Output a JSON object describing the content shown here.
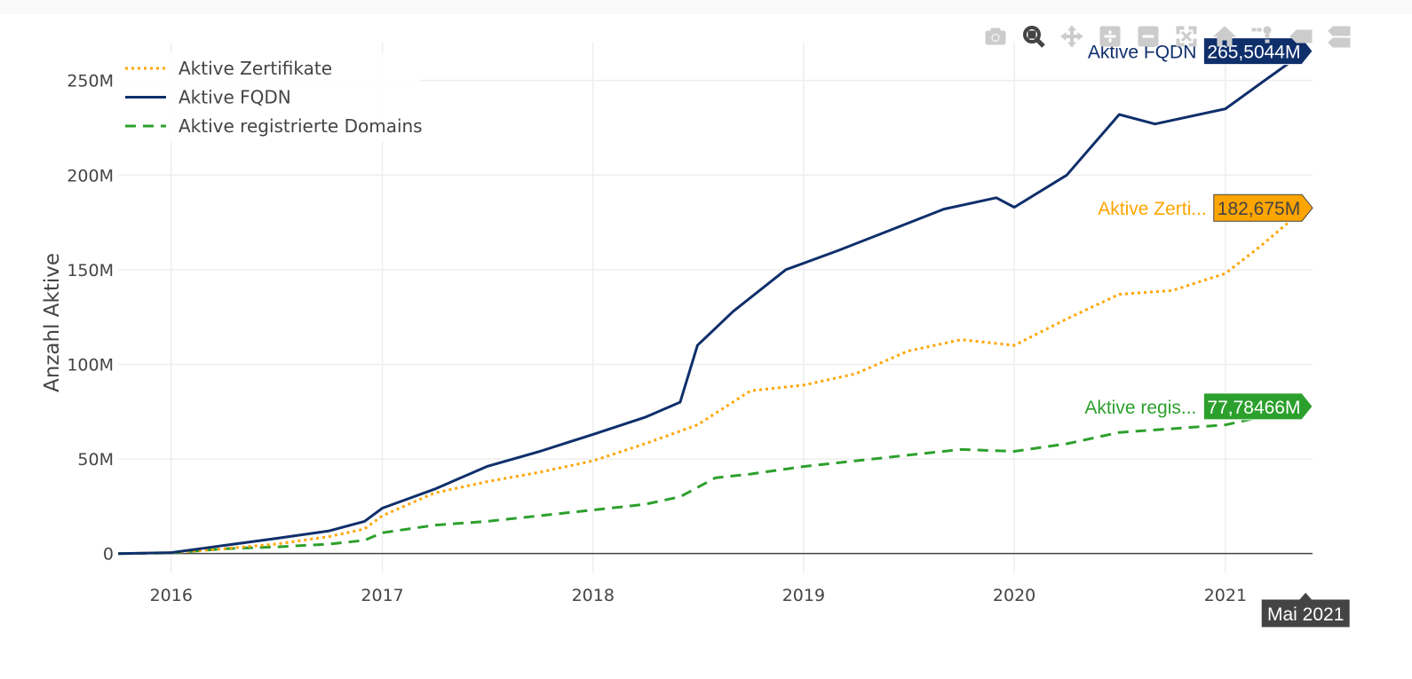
{
  "modebar": {
    "buttons": [
      {
        "name": "camera-icon",
        "active": false
      },
      {
        "name": "zoom-icon",
        "active": true
      },
      {
        "name": "pan-icon",
        "active": false
      },
      {
        "name": "zoom-in-icon",
        "active": false
      },
      {
        "name": "zoom-out-icon",
        "active": false
      },
      {
        "name": "autoscale-icon",
        "active": false
      },
      {
        "name": "reset-axes-icon",
        "active": false
      },
      {
        "name": "spike-lines-icon",
        "active": false
      },
      {
        "name": "hover-closest-icon",
        "active": false
      },
      {
        "name": "hover-compare-icon",
        "active": false
      }
    ]
  },
  "chart_data": {
    "type": "line",
    "ylabel": "Anzahl Aktive",
    "xlabel": "",
    "x_range": [
      "2015-10-01",
      "2021-06-01"
    ],
    "ylim": [
      -10000000,
      270000000
    ],
    "x_ticks": [
      "2016",
      "2017",
      "2018",
      "2019",
      "2020",
      "2021"
    ],
    "y_ticks": [
      {
        "value": 0,
        "label": "0"
      },
      {
        "value": 50000000,
        "label": "50M"
      },
      {
        "value": 100000000,
        "label": "100M"
      },
      {
        "value": 150000000,
        "label": "150M"
      },
      {
        "value": 200000000,
        "label": "200M"
      },
      {
        "value": 250000000,
        "label": "250M"
      }
    ],
    "grid": true,
    "legend_position": "top-left",
    "hover_x_label": "Mai 2021",
    "series": [
      {
        "name": "Aktive Zertifikate",
        "color": "#ffa500",
        "dash": "dot",
        "hover_name": "Aktive Zerti...",
        "hover_value": "182,675M",
        "hover_text_color": "#444444",
        "x": [
          "2015-10-01",
          "2016-01-01",
          "2016-04-01",
          "2016-07-01",
          "2016-10-01",
          "2016-12-01",
          "2017-01-01",
          "2017-04-01",
          "2017-07-01",
          "2017-10-01",
          "2018-01-01",
          "2018-04-01",
          "2018-07-01",
          "2018-10-01",
          "2019-01-01",
          "2019-04-01",
          "2019-07-01",
          "2019-10-01",
          "2020-01-01",
          "2020-04-01",
          "2020-07-01",
          "2020-10-01",
          "2021-01-01",
          "2021-03-01",
          "2021-05-20"
        ],
        "y": [
          0,
          500000,
          2500000,
          5000000,
          9000000,
          13000000,
          20000000,
          32000000,
          38000000,
          43000000,
          49000000,
          58000000,
          68000000,
          86000000,
          89000000,
          95000000,
          107000000,
          113000000,
          110000000,
          124000000,
          137000000,
          139000000,
          148000000,
          162000000,
          182675000
        ]
      },
      {
        "name": "Aktive FQDN",
        "color": "#0f2f6b",
        "dash": "solid",
        "hover_name": "Aktive FQDN",
        "hover_value": "265,5044M",
        "hover_text_color": "#ffffff",
        "x": [
          "2015-10-01",
          "2016-01-01",
          "2016-03-01",
          "2016-07-01",
          "2016-10-01",
          "2016-12-01",
          "2017-01-01",
          "2017-04-01",
          "2017-07-01",
          "2017-10-01",
          "2018-01-01",
          "2018-04-01",
          "2018-06-01",
          "2018-07-01",
          "2018-09-01",
          "2018-12-01",
          "2019-03-01",
          "2019-06-01",
          "2019-09-01",
          "2019-12-01",
          "2020-01-01",
          "2020-04-01",
          "2020-07-01",
          "2020-09-01",
          "2021-01-01",
          "2021-03-01",
          "2021-05-20"
        ],
        "y": [
          0,
          500000,
          3000000,
          8000000,
          12000000,
          17000000,
          24000000,
          34000000,
          46000000,
          54000000,
          63000000,
          72000000,
          80000000,
          110000000,
          128000000,
          150000000,
          160000000,
          171000000,
          182000000,
          188000000,
          183000000,
          200000000,
          232000000,
          227000000,
          235000000,
          248000000,
          265504400
        ]
      },
      {
        "name": "Aktive registrierte Domains",
        "color": "#2ca02c",
        "dash": "dash",
        "hover_name": "Aktive regis...",
        "hover_value": "77,78466M",
        "hover_text_color": "#ffffff",
        "x": [
          "2015-10-01",
          "2016-01-01",
          "2016-04-01",
          "2016-07-01",
          "2016-10-01",
          "2016-12-01",
          "2017-01-01",
          "2017-04-01",
          "2017-07-01",
          "2017-10-01",
          "2018-01-01",
          "2018-04-01",
          "2018-06-01",
          "2018-08-01",
          "2018-10-01",
          "2019-01-01",
          "2019-04-01",
          "2019-07-01",
          "2019-10-01",
          "2020-01-01",
          "2020-04-01",
          "2020-07-01",
          "2020-10-01",
          "2021-01-01",
          "2021-03-01",
          "2021-05-20"
        ],
        "y": [
          0,
          300000,
          2500000,
          3500000,
          5000000,
          7000000,
          11000000,
          15000000,
          17000000,
          20000000,
          23000000,
          26000000,
          30000000,
          40000000,
          42000000,
          46000000,
          49000000,
          52000000,
          55000000,
          54000000,
          58000000,
          64000000,
          66000000,
          68000000,
          72000000,
          77784660
        ]
      }
    ]
  }
}
